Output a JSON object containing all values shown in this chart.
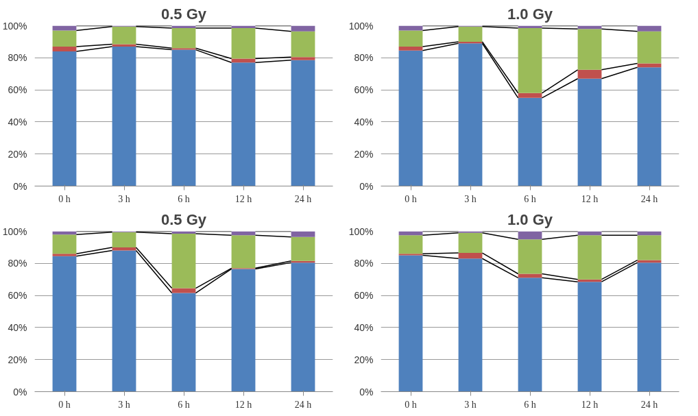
{
  "chart_data": [
    {
      "type": "bar",
      "stacked": true,
      "title": "0.5 Gy",
      "categories": [
        "0 h",
        "3 h",
        "6 h",
        "12 h",
        "24 h"
      ],
      "ylim": [
        0,
        100
      ],
      "yticks": [
        {
          "value": 0,
          "label": "0%"
        },
        {
          "value": 20,
          "label": "20%"
        },
        {
          "value": 40,
          "label": "40%"
        },
        {
          "value": 60,
          "label": "60%"
        },
        {
          "value": 80,
          "label": "80%"
        },
        {
          "value": 100,
          "label": "100%"
        }
      ],
      "grid": "y",
      "series": [
        {
          "color": "#4f81bd",
          "values": [
            84,
            87,
            85,
            77,
            78.5
          ]
        },
        {
          "color": "#c0504d",
          "values": [
            3,
            1.5,
            1,
            2.5,
            2
          ]
        },
        {
          "color": "#9bbb59",
          "values": [
            10,
            11,
            12.5,
            19,
            16
          ]
        },
        {
          "color": "#8064a2",
          "values": [
            3,
            0.5,
            1.5,
            1.5,
            3.5
          ]
        }
      ]
    },
    {
      "type": "bar",
      "stacked": true,
      "title": "1.0 Gy",
      "categories": [
        "0 h",
        "3 h",
        "6 h",
        "12 h",
        "24 h"
      ],
      "ylim": [
        0,
        100
      ],
      "yticks": [
        {
          "value": 0,
          "label": "0%"
        },
        {
          "value": 20,
          "label": "20%"
        },
        {
          "value": 40,
          "label": "40%"
        },
        {
          "value": 60,
          "label": "60%"
        },
        {
          "value": 80,
          "label": "80%"
        },
        {
          "value": 100,
          "label": "100%"
        }
      ],
      "grid": "y",
      "series": [
        {
          "color": "#4f81bd",
          "values": [
            84.5,
            89,
            55,
            67,
            74
          ]
        },
        {
          "color": "#c0504d",
          "values": [
            2.5,
            1,
            3,
            5.5,
            2.5
          ]
        },
        {
          "color": "#9bbb59",
          "values": [
            10,
            9.5,
            40.5,
            25.5,
            20
          ]
        },
        {
          "color": "#8064a2",
          "values": [
            3,
            0.5,
            1.5,
            2,
            3.5
          ]
        }
      ]
    },
    {
      "type": "bar",
      "stacked": true,
      "title": "0.5 Gy",
      "categories": [
        "0 h",
        "3 h",
        "6 h",
        "12 h",
        "24 h"
      ],
      "ylim": [
        0,
        100
      ],
      "yticks": [
        {
          "value": 0,
          "label": "0%"
        },
        {
          "value": 20,
          "label": "20%"
        },
        {
          "value": 40,
          "label": "40%"
        },
        {
          "value": 60,
          "label": "60%"
        },
        {
          "value": 80,
          "label": "80%"
        },
        {
          "value": 100,
          "label": "100%"
        }
      ],
      "grid": "y",
      "series": [
        {
          "color": "#4f81bd",
          "values": [
            84.5,
            88,
            61.5,
            76.5,
            80.5
          ]
        },
        {
          "color": "#c0504d",
          "values": [
            1.5,
            2,
            3,
            0.5,
            1
          ]
        },
        {
          "color": "#9bbb59",
          "values": [
            12,
            9.5,
            34,
            20.5,
            15
          ]
        },
        {
          "color": "#8064a2",
          "values": [
            2,
            0.5,
            1.5,
            2.5,
            3.5
          ]
        }
      ]
    },
    {
      "type": "bar",
      "stacked": true,
      "title": "1.0 Gy",
      "categories": [
        "0 h",
        "3 h",
        "6 h",
        "12 h",
        "24 h"
      ],
      "ylim": [
        0,
        100
      ],
      "yticks": [
        {
          "value": 0,
          "label": "0%"
        },
        {
          "value": 20,
          "label": "20%"
        },
        {
          "value": 40,
          "label": "40%"
        },
        {
          "value": 60,
          "label": "60%"
        },
        {
          "value": 80,
          "label": "80%"
        },
        {
          "value": 100,
          "label": "100%"
        }
      ],
      "grid": "y",
      "series": [
        {
          "color": "#4f81bd",
          "values": [
            85,
            83,
            71,
            68.5,
            80.5
          ]
        },
        {
          "color": "#c0504d",
          "values": [
            1,
            3.5,
            2.5,
            1.5,
            1.5
          ]
        },
        {
          "color": "#9bbb59",
          "values": [
            11.5,
            12.5,
            21.5,
            27.5,
            15.5
          ]
        },
        {
          "color": "#8064a2",
          "values": [
            2.5,
            1,
            5,
            2.5,
            2.5
          ]
        }
      ]
    }
  ]
}
